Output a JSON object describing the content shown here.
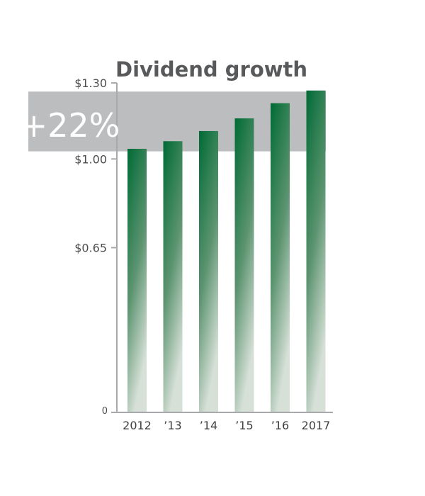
{
  "chart_data": {
    "type": "bar",
    "title": "Dividend growth",
    "categories": [
      "2012",
      "’13",
      "’14",
      "’15",
      "’16",
      "2017"
    ],
    "values": [
      1.04,
      1.07,
      1.11,
      1.16,
      1.22,
      1.27
    ],
    "y_ticks": [
      {
        "value": 1.3,
        "label": "$1.30"
      },
      {
        "value": 1.0,
        "label": "$1.00"
      },
      {
        "value": 0.65,
        "label": "$0.65"
      },
      {
        "value": 0,
        "label": "0"
      }
    ],
    "ylim": [
      0,
      1.3
    ],
    "grid": false,
    "highlight": {
      "label": "+22%",
      "range": [
        1.03,
        1.27
      ],
      "color": "#bcbdbf"
    },
    "colors": {
      "bar_top": "#006a35",
      "bar_bottom": "#d6e0d7",
      "axis": "#a7a9ac"
    }
  }
}
